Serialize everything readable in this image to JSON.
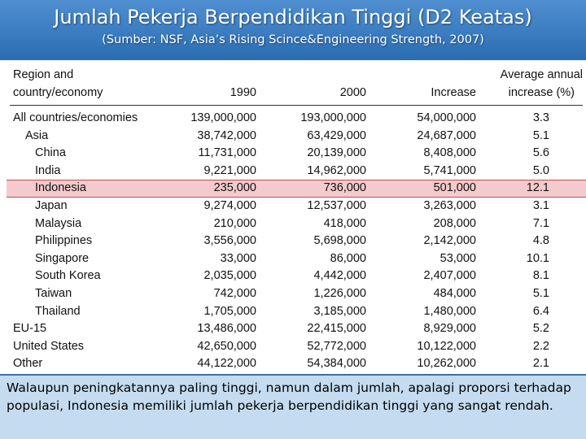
{
  "slide": {
    "title": "Jumlah Pekerja Berpendidikan Tinggi (D2 Keatas)",
    "subtitle": "(Sumber: NSF, Asia’s Rising Scince&Engineering Strength, 2007)"
  },
  "table": {
    "headers": {
      "region_line1": "Region and",
      "region_line2": "country/economy",
      "y1990": "1990",
      "y2000": "2000",
      "increase": "Increase",
      "avg_line1": "Average annual",
      "avg_line2": "increase (%)"
    },
    "rows": [
      {
        "name": "All countries/economies",
        "v1990": "139,000,000",
        "v2000": "193,000,000",
        "increase": "54,000,000",
        "avg": "3.3"
      },
      {
        "name": "Asia",
        "v1990": "38,742,000",
        "v2000": "63,429,000",
        "increase": "24,687,000",
        "avg": "5.1"
      },
      {
        "name": "China",
        "v1990": "11,731,000",
        "v2000": "20,139,000",
        "increase": "8,408,000",
        "avg": "5.6"
      },
      {
        "name": "India",
        "v1990": "9,221,000",
        "v2000": "14,962,000",
        "increase": "5,741,000",
        "avg": "5.0"
      },
      {
        "name": "Indonesia",
        "v1990": "235,000",
        "v2000": "736,000",
        "increase": "501,000",
        "avg": "12.1"
      },
      {
        "name": "Japan",
        "v1990": "9,274,000",
        "v2000": "12,537,000",
        "increase": "3,263,000",
        "avg": "3.1"
      },
      {
        "name": "Malaysia",
        "v1990": "210,000",
        "v2000": "418,000",
        "increase": "208,000",
        "avg": "7.1"
      },
      {
        "name": "Philippines",
        "v1990": "3,556,000",
        "v2000": "5,698,000",
        "increase": "2,142,000",
        "avg": "4.8"
      },
      {
        "name": "Singapore",
        "v1990": "33,000",
        "v2000": "86,000",
        "increase": "53,000",
        "avg": "10.1"
      },
      {
        "name": "South Korea",
        "v1990": "2,035,000",
        "v2000": "4,442,000",
        "increase": "2,407,000",
        "avg": "8.1"
      },
      {
        "name": "Taiwan",
        "v1990": "742,000",
        "v2000": "1,226,000",
        "increase": "484,000",
        "avg": "5.1"
      },
      {
        "name": "Thailand",
        "v1990": "1,705,000",
        "v2000": "3,185,000",
        "increase": "1,480,000",
        "avg": "6.4"
      },
      {
        "name": "EU-15",
        "v1990": "13,486,000",
        "v2000": "22,415,000",
        "increase": "8,929,000",
        "avg": "5.2"
      },
      {
        "name": "United States",
        "v1990": "42,650,000",
        "v2000": "52,772,000",
        "increase": "10,122,000",
        "avg": "2.2"
      },
      {
        "name": "Other",
        "v1990": "44,122,000",
        "v2000": "54,384,000",
        "increase": "10,262,000",
        "avg": "2.1"
      }
    ]
  },
  "note": {
    "text": "Walaupun peningkatannya paling tinggi, namun dalam jumlah, apalagi proporsi terhadap populasi, Indonesia memiliki jumlah pekerja berpendidikan tinggi yang sangat rendah."
  }
}
